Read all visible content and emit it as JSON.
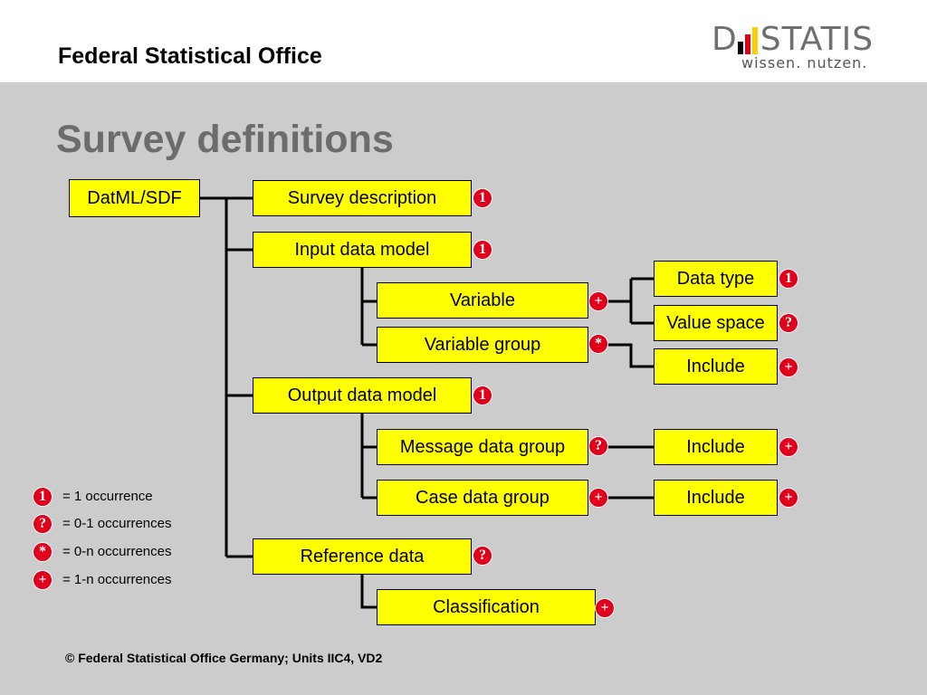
{
  "header": {
    "org_title": "Federal Statistical Office",
    "logo": {
      "word_prefix": "D",
      "word_suffix": "STATIS",
      "tagline": "wissen. nutzen.",
      "bar_colors": [
        "#000000",
        "#e0001b",
        "#ffcc00"
      ]
    }
  },
  "page_title": "Survey definitions",
  "colors": {
    "node_fill": "#ffff00",
    "badge_fill": "#e0001b",
    "background": "#cccccc"
  },
  "nodes": {
    "root": "DatML/SDF",
    "survey_description": "Survey description",
    "input_data_model": "Input data model",
    "variable": "Variable",
    "variable_group": "Variable group",
    "data_type": "Data type",
    "value_space": "Value space",
    "include_vg": "Include",
    "output_data_model": "Output data model",
    "message_data_group": "Message data group",
    "case_data_group": "Case data group",
    "include_mdg": "Include",
    "include_cdg": "Include",
    "reference_data": "Reference data",
    "classification": "Classification"
  },
  "badges": {
    "survey_description": "1",
    "input_data_model": "1",
    "variable": "+",
    "variable_group": "*",
    "data_type": "1",
    "value_space": "?",
    "include_vg": "+",
    "output_data_model": "1",
    "message_data_group": "?",
    "case_data_group": "+",
    "include_mdg": "+",
    "include_cdg": "+",
    "reference_data": "?",
    "classification": "+"
  },
  "legend": [
    {
      "symbol": "1",
      "text": "= 1 occurrence"
    },
    {
      "symbol": "?",
      "text": "= 0-1 occurrences"
    },
    {
      "symbol": "*",
      "text": "= 0-n occurrences"
    },
    {
      "symbol": "+",
      "text": "= 1-n occurrences"
    }
  ],
  "footer": "© Federal Statistical Office Germany; Units IIC4, VD2"
}
